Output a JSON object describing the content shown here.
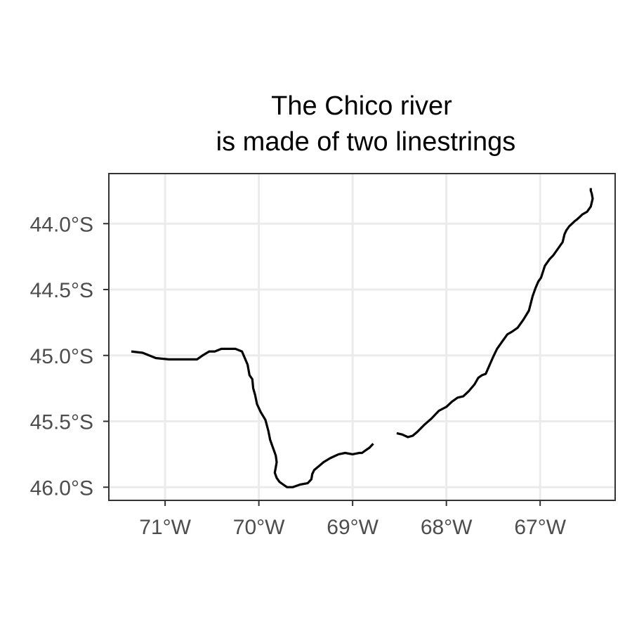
{
  "title": {
    "line1": "The Chico river",
    "line2": "is made of two linestrings"
  },
  "colors": {
    "river": "#000000",
    "grid": "#ebebeb",
    "axis_text": "#4d4d4d",
    "panel_border": "#333333"
  },
  "chart_data": {
    "type": "line",
    "title": "The Chico river is made of two linestrings",
    "xlabel": "",
    "ylabel": "",
    "xlim": [
      -71.6,
      -66.2
    ],
    "ylim": [
      -46.1,
      -43.62
    ],
    "grid": true,
    "x_ticks": [
      {
        "value": -71,
        "label": "71°W"
      },
      {
        "value": -70,
        "label": "70°W"
      },
      {
        "value": -69,
        "label": "69°W"
      },
      {
        "value": -68,
        "label": "68°W"
      },
      {
        "value": -67,
        "label": "67°W"
      }
    ],
    "y_ticks": [
      {
        "value": -44.0,
        "label": "44.0°S"
      },
      {
        "value": -44.5,
        "label": "44.5°S"
      },
      {
        "value": -45.0,
        "label": "45.0°S"
      },
      {
        "value": -45.5,
        "label": "45.5°S"
      },
      {
        "value": -46.0,
        "label": "46.0°S"
      }
    ],
    "series": [
      {
        "x": [
          -71.36,
          -71.24,
          -71.1,
          -70.96,
          -70.85,
          -70.76,
          -70.66,
          -70.6,
          -70.53,
          -70.47,
          -70.4,
          -70.32,
          -70.25,
          -70.18,
          -70.12,
          -70.1,
          -70.07,
          -70.06,
          -70.04,
          -70.02,
          -69.98,
          -69.93,
          -69.9,
          -69.88,
          -69.86,
          -69.84,
          -69.82,
          -69.81,
          -69.82,
          -69.83,
          -69.81,
          -69.78,
          -69.74,
          -69.7,
          -69.64,
          -69.56,
          -69.48,
          -69.44,
          -69.43,
          -69.41,
          -69.36,
          -69.31,
          -69.24,
          -69.15,
          -69.08,
          -69.0,
          -68.93,
          -68.9,
          -68.86,
          -68.82,
          -68.78
        ],
        "y": [
          -44.97,
          -44.98,
          -45.02,
          -45.03,
          -45.03,
          -45.03,
          -45.03,
          -45.0,
          -44.97,
          -44.97,
          -44.95,
          -44.95,
          -44.95,
          -44.97,
          -45.07,
          -45.15,
          -45.18,
          -45.25,
          -45.3,
          -45.37,
          -45.43,
          -45.49,
          -45.57,
          -45.64,
          -45.68,
          -45.72,
          -45.76,
          -45.81,
          -45.85,
          -45.89,
          -45.93,
          -45.96,
          -45.98,
          -46.0,
          -46.0,
          -45.98,
          -45.97,
          -45.94,
          -45.9,
          -45.87,
          -45.84,
          -45.81,
          -45.78,
          -45.75,
          -45.74,
          -45.75,
          -45.74,
          -45.74,
          -45.72,
          -45.7,
          -45.67
        ]
      },
      {
        "x": [
          -68.53,
          -68.47,
          -68.41,
          -68.36,
          -68.31,
          -68.24,
          -68.16,
          -68.08,
          -68.0,
          -67.94,
          -67.88,
          -67.82,
          -67.76,
          -67.7,
          -67.66,
          -67.62,
          -67.58,
          -67.55,
          -67.5,
          -67.46,
          -67.4,
          -67.35,
          -67.3,
          -67.24,
          -67.18,
          -67.12,
          -67.08,
          -67.05,
          -67.02,
          -66.99,
          -66.95,
          -66.9,
          -66.86,
          -66.8,
          -66.76,
          -66.74,
          -66.72,
          -66.69,
          -66.66,
          -66.63,
          -66.61,
          -66.58,
          -66.55,
          -66.5,
          -66.46,
          -66.44,
          -66.45,
          -66.46,
          -66.46
        ],
        "y": [
          -45.59,
          -45.6,
          -45.62,
          -45.61,
          -45.58,
          -45.53,
          -45.48,
          -45.42,
          -45.39,
          -45.35,
          -45.32,
          -45.31,
          -45.27,
          -45.22,
          -45.17,
          -45.15,
          -45.14,
          -45.09,
          -45.01,
          -44.95,
          -44.89,
          -44.84,
          -44.82,
          -44.79,
          -44.73,
          -44.66,
          -44.55,
          -44.49,
          -44.44,
          -44.41,
          -44.32,
          -44.27,
          -44.24,
          -44.18,
          -44.14,
          -44.08,
          -44.05,
          -44.02,
          -44.0,
          -43.98,
          -43.97,
          -43.95,
          -43.93,
          -43.91,
          -43.87,
          -43.81,
          -43.77,
          -43.75,
          -43.73
        ]
      }
    ]
  }
}
